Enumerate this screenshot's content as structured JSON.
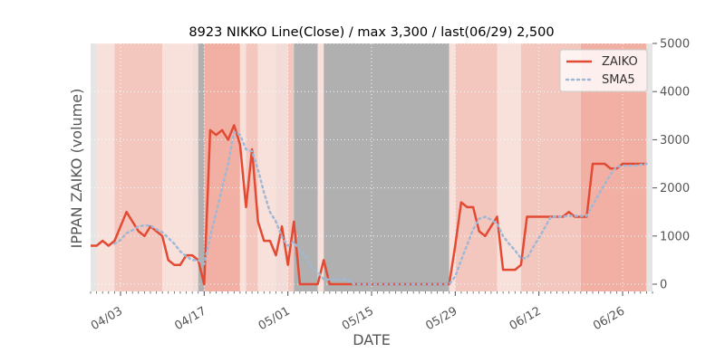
{
  "chart_data": {
    "type": "line",
    "title": "8923 NIKKO Line(Close) / max 3,300 / last(06/29) 2,500",
    "xlabel": "DATE",
    "ylabel": "IPPAN ZAIKO (volume)",
    "ylim": [
      -150,
      5000
    ],
    "y_axis_side": "right",
    "y_ticks": [
      0,
      1000,
      2000,
      3000,
      4000,
      5000
    ],
    "y_tick_labels": [
      "0",
      "1000",
      "2000",
      "3000",
      "4000",
      "5000"
    ],
    "x_ticks": [
      "04/03",
      "04/17",
      "05/01",
      "05/15",
      "05/29",
      "06/12",
      "06/26"
    ],
    "x_range": [
      "03/29",
      "07/01"
    ],
    "grid": true,
    "legend_position": "top-right",
    "series": [
      {
        "name": "ZAIKO",
        "color": "#E24A33",
        "style": "solid",
        "points": [
          [
            "03/29",
            800
          ],
          [
            "03/30",
            800
          ],
          [
            "03/31",
            900
          ],
          [
            "04/01",
            800
          ],
          [
            "04/02",
            900
          ],
          [
            "04/03",
            1200
          ],
          [
            "04/04",
            1500
          ],
          [
            "04/05",
            1300
          ],
          [
            "04/06",
            1100
          ],
          [
            "04/07",
            1000
          ],
          [
            "04/08",
            1200
          ],
          [
            "04/09",
            1100
          ],
          [
            "04/10",
            1000
          ],
          [
            "04/11",
            500
          ],
          [
            "04/12",
            400
          ],
          [
            "04/13",
            400
          ],
          [
            "04/14",
            600
          ],
          [
            "04/15",
            600
          ],
          [
            "04/16",
            500
          ],
          [
            "04/17",
            0
          ],
          [
            "04/18",
            3200
          ],
          [
            "04/19",
            3100
          ],
          [
            "04/20",
            3200
          ],
          [
            "04/21",
            3000
          ],
          [
            "04/22",
            3300
          ],
          [
            "04/23",
            2900
          ],
          [
            "04/24",
            1600
          ],
          [
            "04/25",
            2800
          ],
          [
            "04/26",
            1300
          ],
          [
            "04/27",
            900
          ],
          [
            "04/28",
            900
          ],
          [
            "04/29",
            600
          ],
          [
            "04/30",
            1200
          ],
          [
            "05/01",
            400
          ],
          [
            "05/02",
            1300
          ],
          [
            "05/03",
            0
          ],
          [
            "05/04",
            0
          ],
          [
            "05/05",
            0
          ],
          [
            "05/06",
            0
          ],
          [
            "05/07",
            500
          ],
          [
            "05/08",
            0
          ],
          [
            "05/09",
            0
          ],
          [
            "05/10",
            0
          ],
          [
            "05/11",
            0
          ],
          [
            "05/12",
            0
          ],
          [
            "05/13",
            0
          ],
          [
            "05/14",
            0
          ],
          [
            "05/15",
            0
          ],
          [
            "05/16",
            0
          ],
          [
            "05/17",
            0
          ],
          [
            "05/18",
            0
          ],
          [
            "05/19",
            0
          ],
          [
            "05/20",
            0
          ],
          [
            "05/21",
            0
          ],
          [
            "05/22",
            0
          ],
          [
            "05/23",
            0
          ],
          [
            "05/24",
            0
          ],
          [
            "05/25",
            0
          ],
          [
            "05/26",
            0
          ],
          [
            "05/27",
            0
          ],
          [
            "05/28",
            0
          ],
          [
            "05/29",
            800
          ],
          [
            "05/30",
            1700
          ],
          [
            "05/31",
            1600
          ],
          [
            "06/01",
            1600
          ],
          [
            "06/02",
            1100
          ],
          [
            "06/03",
            1000
          ],
          [
            "06/04",
            1200
          ],
          [
            "06/05",
            1400
          ],
          [
            "06/06",
            300
          ],
          [
            "06/07",
            300
          ],
          [
            "06/08",
            300
          ],
          [
            "06/09",
            400
          ],
          [
            "06/10",
            1400
          ],
          [
            "06/11",
            1400
          ],
          [
            "06/12",
            1400
          ],
          [
            "06/13",
            1400
          ],
          [
            "06/14",
            1400
          ],
          [
            "06/15",
            1400
          ],
          [
            "06/16",
            1400
          ],
          [
            "06/17",
            1500
          ],
          [
            "06/18",
            1400
          ],
          [
            "06/19",
            1400
          ],
          [
            "06/20",
            1400
          ],
          [
            "06/21",
            2500
          ],
          [
            "06/22",
            2500
          ],
          [
            "06/23",
            2500
          ],
          [
            "06/24",
            2400
          ],
          [
            "06/25",
            2400
          ],
          [
            "06/26",
            2500
          ],
          [
            "06/27",
            2500
          ],
          [
            "06/28",
            2500
          ],
          [
            "06/29",
            2500
          ],
          [
            "06/30",
            2500
          ]
        ]
      },
      {
        "name": "SMA5",
        "color": "#9EB8D6",
        "style": "dotted",
        "points": [
          [
            "04/02",
            840
          ],
          [
            "04/03",
            920
          ],
          [
            "04/04",
            1060
          ],
          [
            "04/05",
            1120
          ],
          [
            "04/06",
            1200
          ],
          [
            "04/07",
            1220
          ],
          [
            "04/08",
            1220
          ],
          [
            "04/09",
            1140
          ],
          [
            "04/10",
            1080
          ],
          [
            "04/11",
            960
          ],
          [
            "04/12",
            840
          ],
          [
            "04/13",
            680
          ],
          [
            "04/14",
            580
          ],
          [
            "04/15",
            500
          ],
          [
            "04/16",
            500
          ],
          [
            "04/17",
            420
          ],
          [
            "04/18",
            980
          ],
          [
            "04/19",
            1480
          ],
          [
            "04/20",
            2000
          ],
          [
            "04/21",
            2500
          ],
          [
            "04/22",
            3160
          ],
          [
            "04/23",
            3100
          ],
          [
            "04/24",
            2800
          ],
          [
            "04/25",
            2760
          ],
          [
            "04/26",
            2380
          ],
          [
            "04/27",
            1900
          ],
          [
            "04/28",
            1500
          ],
          [
            "04/29",
            1300
          ],
          [
            "04/30",
            980
          ],
          [
            "05/01",
            800
          ],
          [
            "05/02",
            880
          ],
          [
            "05/03",
            700
          ],
          [
            "05/04",
            580
          ],
          [
            "05/05",
            340
          ],
          [
            "05/06",
            260
          ],
          [
            "05/07",
            100
          ],
          [
            "05/08",
            100
          ],
          [
            "05/09",
            100
          ],
          [
            "05/10",
            100
          ],
          [
            "05/11",
            100
          ],
          [
            "05/12",
            0
          ],
          [
            "05/13",
            0
          ],
          [
            "05/14",
            0
          ],
          [
            "05/15",
            0
          ],
          [
            "05/16",
            0
          ],
          [
            "05/17",
            0
          ],
          [
            "05/18",
            0
          ],
          [
            "05/19",
            0
          ],
          [
            "05/20",
            0
          ],
          [
            "05/21",
            0
          ],
          [
            "05/22",
            0
          ],
          [
            "05/23",
            0
          ],
          [
            "05/24",
            0
          ],
          [
            "05/25",
            0
          ],
          [
            "05/26",
            0
          ],
          [
            "05/27",
            0
          ],
          [
            "05/28",
            0
          ],
          [
            "05/29",
            160
          ],
          [
            "05/30",
            500
          ],
          [
            "05/31",
            820
          ],
          [
            "06/01",
            1140
          ],
          [
            "06/02",
            1360
          ],
          [
            "06/03",
            1400
          ],
          [
            "06/04",
            1340
          ],
          [
            "06/05",
            1260
          ],
          [
            "06/06",
            1000
          ],
          [
            "06/07",
            840
          ],
          [
            "06/08",
            700
          ],
          [
            "06/09",
            540
          ],
          [
            "06/10",
            540
          ],
          [
            "06/11",
            760
          ],
          [
            "06/12",
            960
          ],
          [
            "06/13",
            1180
          ],
          [
            "06/14",
            1400
          ],
          [
            "06/15",
            1400
          ],
          [
            "06/16",
            1400
          ],
          [
            "06/17",
            1420
          ],
          [
            "06/18",
            1420
          ],
          [
            "06/19",
            1420
          ],
          [
            "06/20",
            1420
          ],
          [
            "06/21",
            1640
          ],
          [
            "06/22",
            1860
          ],
          [
            "06/23",
            2080
          ],
          [
            "06/24",
            2280
          ],
          [
            "06/25",
            2440
          ],
          [
            "06/26",
            2460
          ],
          [
            "06/27",
            2460
          ],
          [
            "06/28",
            2460
          ],
          [
            "06/29",
            2480
          ],
          [
            "06/30",
            2500
          ]
        ]
      }
    ],
    "background_bands": [
      {
        "start": "03/29",
        "end": "03/30",
        "color": "#E5E5E5"
      },
      {
        "start": "03/30",
        "end": "04/02",
        "color": "#F8E0DB"
      },
      {
        "start": "04/02",
        "end": "04/10",
        "color": "#F4C7BE"
      },
      {
        "start": "04/10",
        "end": "04/15",
        "color": "#F8E0DB"
      },
      {
        "start": "04/15",
        "end": "04/16",
        "color": "#F2DCD7"
      },
      {
        "start": "04/16",
        "end": "04/17",
        "color": "#B0B0B0"
      },
      {
        "start": "04/17",
        "end": "04/23",
        "color": "#F2B0A4"
      },
      {
        "start": "04/23",
        "end": "04/24",
        "color": "#F8E0DB"
      },
      {
        "start": "04/24",
        "end": "04/26",
        "color": "#F4C7BE"
      },
      {
        "start": "04/26",
        "end": "04/29",
        "color": "#F8E0DB"
      },
      {
        "start": "04/29",
        "end": "05/01",
        "color": "#F2DCD7"
      },
      {
        "start": "05/01",
        "end": "05/02",
        "color": "#F4C7BE"
      },
      {
        "start": "05/02",
        "end": "05/06",
        "color": "#B0B0B0"
      },
      {
        "start": "05/06",
        "end": "05/07",
        "color": "#F8E0DB"
      },
      {
        "start": "05/07",
        "end": "05/28",
        "color": "#B0B0B0"
      },
      {
        "start": "05/28",
        "end": "05/29",
        "color": "#F8E0DB"
      },
      {
        "start": "05/29",
        "end": "06/05",
        "color": "#F4C7BE"
      },
      {
        "start": "06/05",
        "end": "06/09",
        "color": "#F8E0DB"
      },
      {
        "start": "06/09",
        "end": "06/19",
        "color": "#F4C7BE"
      },
      {
        "start": "06/19",
        "end": "06/30",
        "color": "#F2B0A4"
      },
      {
        "start": "06/30",
        "end": "07/01",
        "color": "#E5E5E5"
      }
    ]
  }
}
